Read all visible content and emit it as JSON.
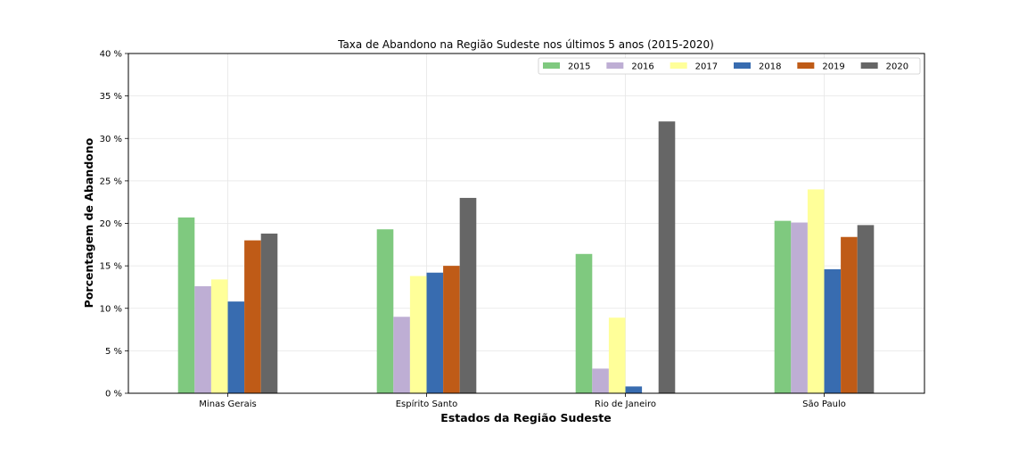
{
  "chart_data": {
    "type": "bar",
    "title": "Taxa de Abandono na Região Sudeste nos últimos 5 anos (2015-2020)",
    "xlabel": "Estados da Região Sudeste",
    "ylabel": "Porcentagem de Abandono",
    "categories": [
      "Minas Gerais",
      "Espírito Santo",
      "Rio de Janeiro",
      "São Paulo"
    ],
    "series": [
      {
        "name": "2015",
        "color": "#7fc97f",
        "values": [
          20.7,
          19.3,
          16.4,
          20.3
        ]
      },
      {
        "name": "2016",
        "color": "#beaed4",
        "values": [
          12.6,
          9.0,
          2.9,
          20.1
        ]
      },
      {
        "name": "2017",
        "color": "#ffff99",
        "values": [
          13.4,
          13.8,
          8.9,
          24.0
        ]
      },
      {
        "name": "2018",
        "color": "#386cb0",
        "values": [
          10.8,
          14.2,
          0.8,
          14.6
        ]
      },
      {
        "name": "2019",
        "color": "#bf5b17",
        "values": [
          18.0,
          15.0,
          0.0,
          18.4
        ]
      },
      {
        "name": "2020",
        "color": "#666666",
        "values": [
          18.8,
          23.0,
          32.0,
          19.8
        ]
      }
    ],
    "ylim": [
      0,
      40
    ],
    "yticks": [
      0,
      5,
      10,
      15,
      20,
      25,
      30,
      35,
      40
    ],
    "ytick_labels": [
      "0 %",
      "5 %",
      "10 %",
      "15 %",
      "20 %",
      "25 %",
      "30 %",
      "35 %",
      "40 %"
    ],
    "grid": true,
    "legend_position": "top-right"
  }
}
